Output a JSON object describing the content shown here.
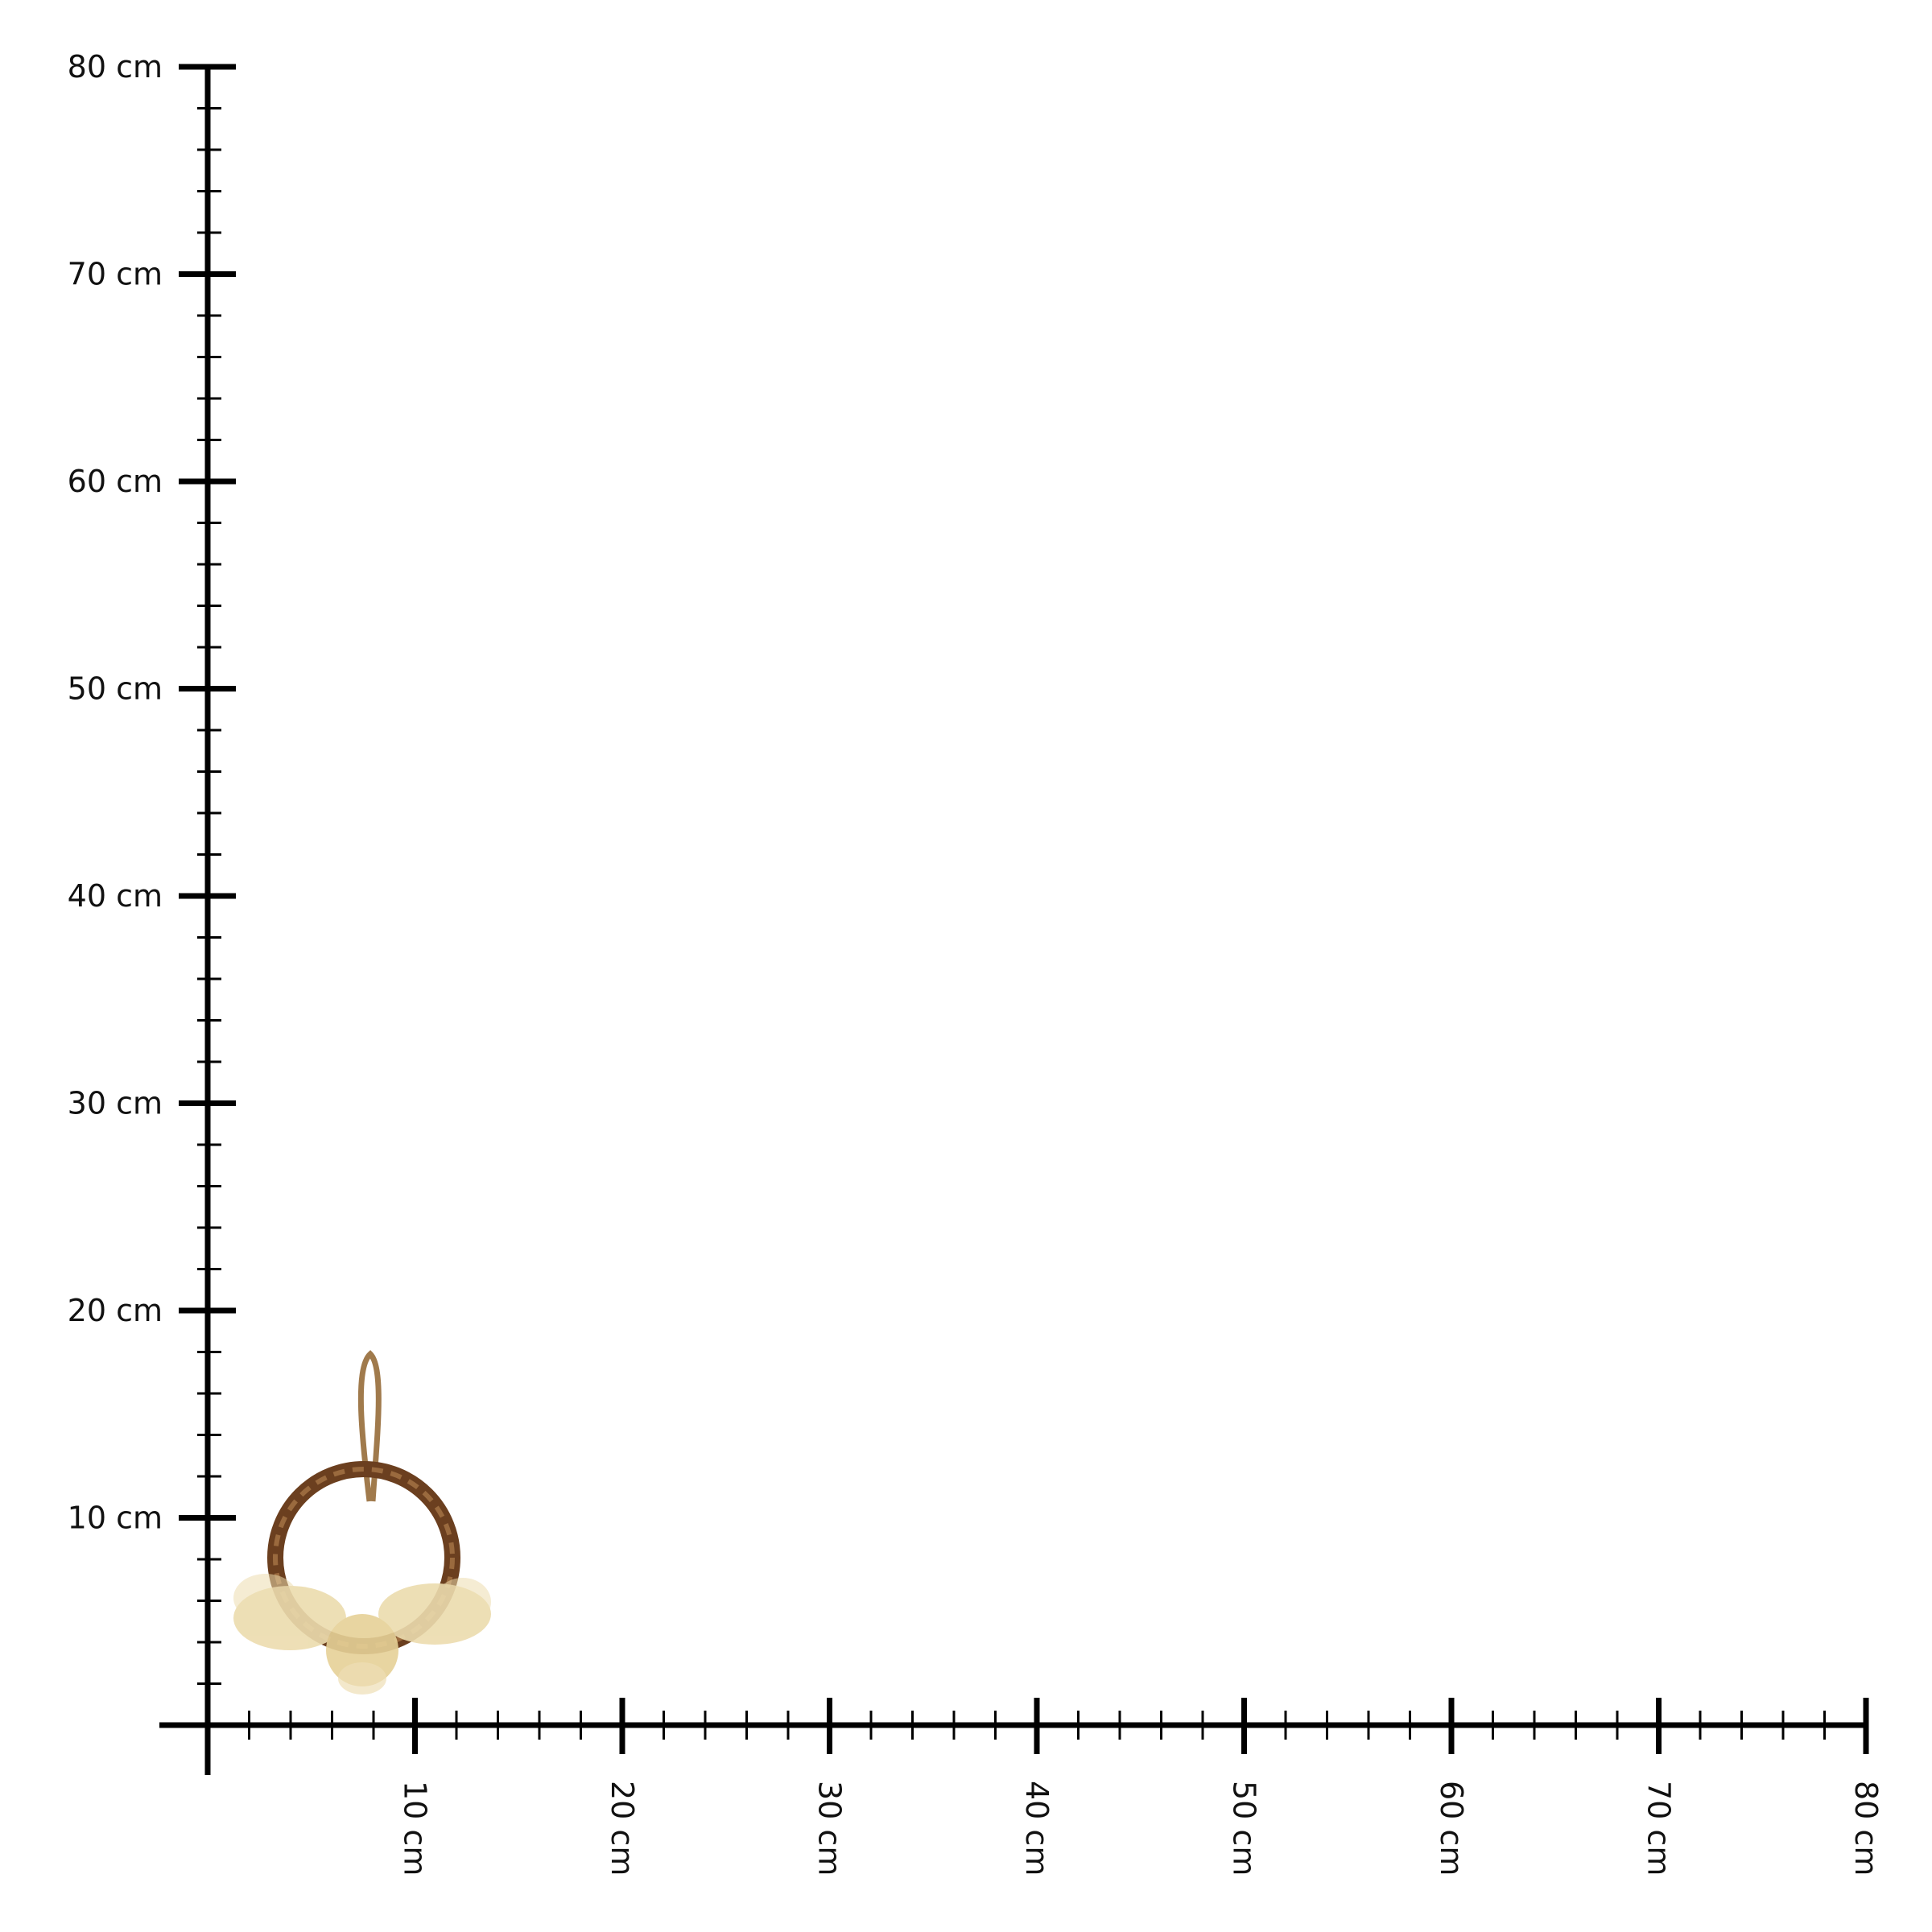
{
  "y_axis": {
    "unit": "cm",
    "labels": [
      "10 cm",
      "20 cm",
      "30 cm",
      "40 cm",
      "50 cm",
      "60 cm",
      "70 cm",
      "80 cm"
    ]
  },
  "x_axis": {
    "unit": "cm",
    "labels": [
      "10 cm",
      "20 cm",
      "30 cm",
      "40 cm",
      "50 cm",
      "60 cm",
      "70 cm",
      "80 cm"
    ]
  },
  "product": {
    "icon": "dried-flower-wreath-with-jute-loop",
    "approx_width_cm": 12,
    "approx_height_cm": 18
  },
  "colors": {
    "axis": "#000000",
    "vine": "#6b3f1f",
    "flowers": "#ecdcae",
    "rope": "#a07a4c"
  }
}
